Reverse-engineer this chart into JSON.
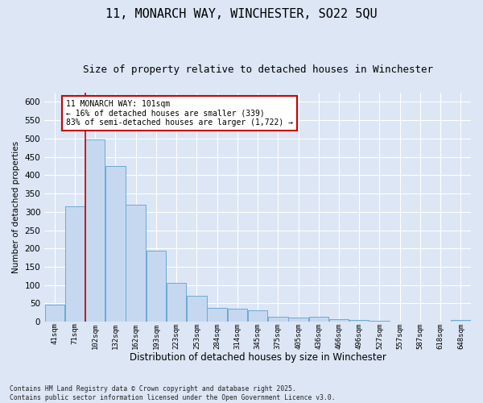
{
  "title": "11, MONARCH WAY, WINCHESTER, SO22 5QU",
  "subtitle": "Size of property relative to detached houses in Winchester",
  "xlabel": "Distribution of detached houses by size in Winchester",
  "ylabel": "Number of detached properties",
  "footer_line1": "Contains HM Land Registry data © Crown copyright and database right 2025.",
  "footer_line2": "Contains public sector information licensed under the Open Government Licence v3.0.",
  "bar_color": "#c5d8f0",
  "bar_edge_color": "#6aaad4",
  "annotation_text": "11 MONARCH WAY: 101sqm\n← 16% of detached houses are smaller (339)\n83% of semi-detached houses are larger (1,722) →",
  "annotation_box_color": "#ffffff",
  "annotation_border_color": "#cc0000",
  "vline_x_bin": 1,
  "vline_color": "#cc0000",
  "categories": [
    "41sqm",
    "71sqm",
    "102sqm",
    "132sqm",
    "162sqm",
    "193sqm",
    "223sqm",
    "253sqm",
    "284sqm",
    "314sqm",
    "345sqm",
    "375sqm",
    "405sqm",
    "436sqm",
    "466sqm",
    "496sqm",
    "527sqm",
    "557sqm",
    "587sqm",
    "618sqm",
    "648sqm"
  ],
  "values": [
    47,
    315,
    498,
    424,
    320,
    195,
    105,
    70,
    38,
    35,
    32,
    13,
    12,
    14,
    8,
    5,
    2,
    1,
    0,
    0,
    4
  ],
  "ylim": [
    0,
    625
  ],
  "yticks": [
    0,
    50,
    100,
    150,
    200,
    250,
    300,
    350,
    400,
    450,
    500,
    550,
    600
  ],
  "background_color": "#dce6f5",
  "plot_background_color": "#dce6f5",
  "title_fontsize": 11,
  "subtitle_fontsize": 9,
  "grid_color": "#ffffff",
  "figsize": [
    6.0,
    5.0
  ],
  "dpi": 100
}
